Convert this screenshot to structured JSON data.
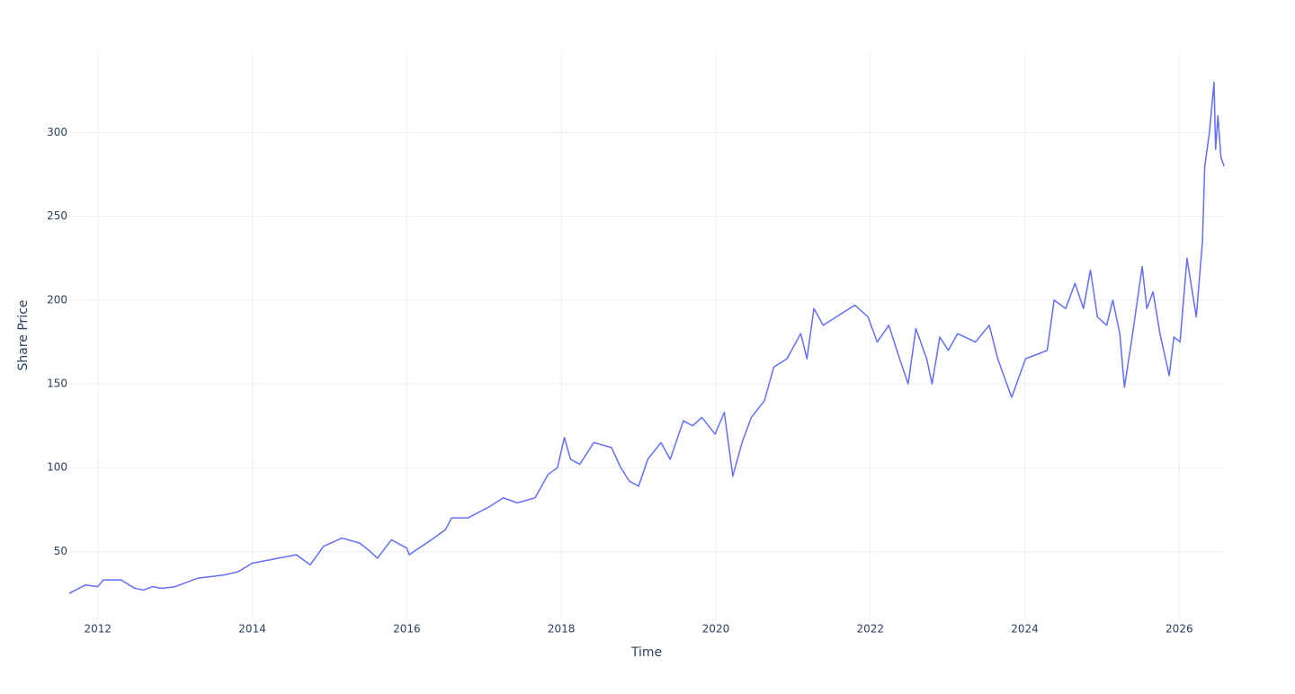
{
  "chart_data": {
    "type": "line",
    "xlabel": "Time",
    "ylabel": "Share Price",
    "color": "#636efa",
    "grid": true,
    "xlim": [
      2011.63,
      2026.59
    ],
    "ylim": [
      10,
      348
    ],
    "xticks": [
      2012,
      2014,
      2016,
      2018,
      2020,
      2022,
      2024,
      2026
    ],
    "yticks": [
      50,
      100,
      150,
      200,
      250,
      300
    ],
    "x": [
      2011.63,
      2011.84,
      2012.0,
      2012.07,
      2012.3,
      2012.48,
      2012.59,
      2012.71,
      2012.83,
      2013.0,
      2013.29,
      2013.64,
      2013.82,
      2014.0,
      2014.34,
      2014.57,
      2014.75,
      2014.92,
      2015.16,
      2015.39,
      2015.5,
      2015.62,
      2015.8,
      2016.0,
      2016.03,
      2016.32,
      2016.5,
      2016.58,
      2016.79,
      2017.08,
      2017.25,
      2017.43,
      2017.66,
      2017.83,
      2017.95,
      2018.04,
      2018.12,
      2018.24,
      2018.42,
      2018.65,
      2018.77,
      2018.88,
      2019.0,
      2019.12,
      2019.29,
      2019.41,
      2019.58,
      2019.7,
      2019.82,
      2019.99,
      2020.11,
      2020.22,
      2020.34,
      2020.46,
      2020.63,
      2020.75,
      2020.92,
      2021.1,
      2021.18,
      2021.27,
      2021.39,
      2021.56,
      2021.8,
      2021.97,
      2022.09,
      2022.24,
      2022.38,
      2022.49,
      2022.59,
      2022.73,
      2022.8,
      2022.9,
      2023.01,
      2023.13,
      2023.36,
      2023.54,
      2023.65,
      2023.83,
      2024.01,
      2024.18,
      2024.29,
      2024.38,
      2024.53,
      2024.65,
      2024.76,
      2024.85,
      2024.94,
      2025.06,
      2025.14,
      2025.23,
      2025.29,
      2025.38,
      2025.52,
      2025.58,
      2025.66,
      2025.75,
      2025.87,
      2025.93,
      2026.01,
      2026.1,
      2026.22,
      2026.3,
      2026.33,
      2026.39,
      2026.45,
      2026.47,
      2026.5,
      2026.54,
      2026.58
    ],
    "values": [
      25,
      30,
      29,
      33,
      33,
      28,
      27,
      29,
      28,
      29,
      34,
      36,
      38,
      43,
      46,
      48,
      42,
      53,
      58,
      55,
      51,
      46,
      57,
      52,
      48,
      57,
      63,
      70,
      70,
      77,
      82,
      79,
      82,
      96,
      100,
      118,
      105,
      102,
      115,
      112,
      100,
      92,
      89,
      105,
      115,
      105,
      128,
      125,
      130,
      120,
      133,
      95,
      115,
      130,
      140,
      160,
      165,
      180,
      165,
      195,
      185,
      190,
      197,
      190,
      175,
      185,
      165,
      150,
      183,
      165,
      150,
      178,
      170,
      180,
      175,
      185,
      165,
      142,
      165,
      168,
      170,
      200,
      195,
      210,
      195,
      218,
      190,
      185,
      200,
      180,
      148,
      175,
      220,
      195,
      205,
      180,
      155,
      178,
      175,
      225,
      190,
      235,
      280,
      300,
      330,
      290,
      310,
      285,
      280
    ]
  }
}
